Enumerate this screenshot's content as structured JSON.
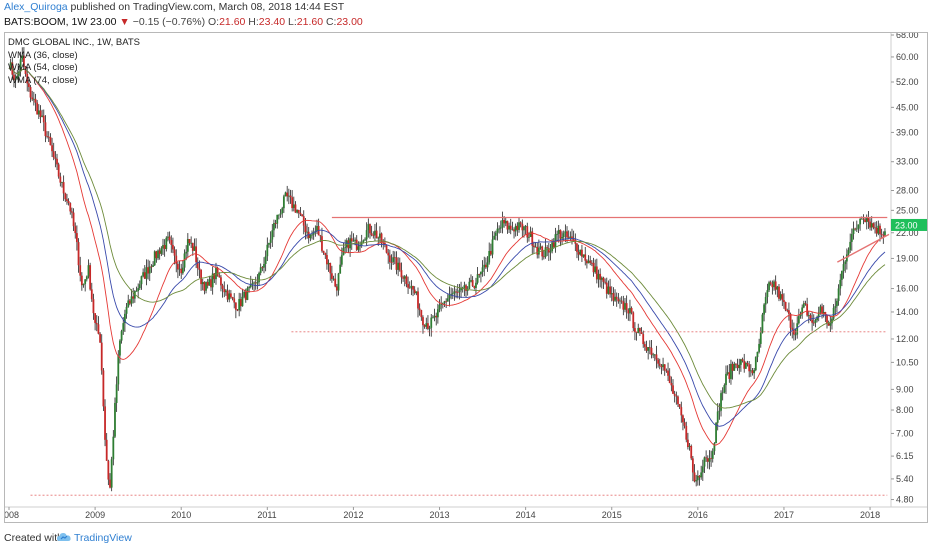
{
  "header": {
    "author": "Alex_Quiroga",
    "published": "published on TradingView.com, March 08, 2018 14:44 EST",
    "symbol": "BATS:BOOM, 1W",
    "last": "23.00",
    "change": "−0.15 (−0.76%)",
    "o_label": "O:",
    "o": "21.60",
    "h_label": "H:",
    "h": "23.40",
    "l_label": "L:",
    "l": "21.60",
    "c_label": "C:",
    "c": "23.00"
  },
  "legend": {
    "title": "DMC GLOBAL INC., 1W, BATS",
    "ma1": "WMA (36, close)",
    "ma2": "WMA (54, close)",
    "ma3": "WMA (74, close)"
  },
  "footer": {
    "created": "Created with",
    "brand": "TradingView"
  },
  "colors": {
    "up": "#2e7d32",
    "down": "#c62828",
    "wick": "#222222",
    "ma_red": "#e53935",
    "ma_blue": "#3949ab",
    "ma_green": "#6d8b3a",
    "hline": "#e57373",
    "price_tag": "#1fbf5b"
  },
  "chart_data": {
    "type": "candlestick",
    "title": "DMC GLOBAL INC., 1W, BATS",
    "y_scale": "log",
    "ylim": [
      4.6,
      68.0
    ],
    "y_ticks": [
      4.8,
      5.4,
      6.15,
      7.0,
      8.0,
      9.0,
      10.5,
      12.0,
      14.0,
      16.0,
      19.0,
      22.0,
      25.0,
      28.0,
      33.0,
      39.0,
      45.0,
      52.0,
      60.0,
      68.0
    ],
    "x_labels": [
      "2008",
      "2009",
      "2010",
      "2011",
      "2012",
      "2013",
      "2014",
      "2015",
      "2016",
      "2017",
      "2018"
    ],
    "xlim": [
      2008.0,
      2018.22
    ],
    "last_price": "23.00",
    "price_path": [
      [
        2008.0,
        58
      ],
      [
        2008.08,
        52
      ],
      [
        2008.15,
        60
      ],
      [
        2008.22,
        50
      ],
      [
        2008.3,
        46
      ],
      [
        2008.38,
        42
      ],
      [
        2008.46,
        37
      ],
      [
        2008.55,
        32
      ],
      [
        2008.63,
        28
      ],
      [
        2008.7,
        26
      ],
      [
        2008.78,
        21
      ],
      [
        2008.85,
        16
      ],
      [
        2008.92,
        18
      ],
      [
        2009.0,
        13
      ],
      [
        2009.06,
        12
      ],
      [
        2009.12,
        6.5
      ],
      [
        2009.17,
        5.0
      ],
      [
        2009.22,
        7.5
      ],
      [
        2009.28,
        11.5
      ],
      [
        2009.35,
        14
      ],
      [
        2009.45,
        15.5
      ],
      [
        2009.55,
        17
      ],
      [
        2009.65,
        18.5
      ],
      [
        2009.75,
        20
      ],
      [
        2009.85,
        21
      ],
      [
        2009.92,
        19
      ],
      [
        2010.0,
        18
      ],
      [
        2010.08,
        21
      ],
      [
        2010.15,
        20
      ],
      [
        2010.22,
        17
      ],
      [
        2010.3,
        16
      ],
      [
        2010.4,
        17.5
      ],
      [
        2010.5,
        16
      ],
      [
        2010.58,
        15
      ],
      [
        2010.66,
        14.5
      ],
      [
        2010.75,
        15.5
      ],
      [
        2010.83,
        16
      ],
      [
        2010.92,
        17.5
      ],
      [
        2011.0,
        20
      ],
      [
        2011.08,
        23
      ],
      [
        2011.15,
        25
      ],
      [
        2011.22,
        27
      ],
      [
        2011.28,
        26
      ],
      [
        2011.35,
        25
      ],
      [
        2011.42,
        23
      ],
      [
        2011.5,
        21.5
      ],
      [
        2011.58,
        22.5
      ],
      [
        2011.65,
        20
      ],
      [
        2011.72,
        18
      ],
      [
        2011.8,
        16
      ],
      [
        2011.88,
        19.5
      ],
      [
        2011.95,
        21
      ],
      [
        2012.03,
        20.5
      ],
      [
        2012.1,
        21.5
      ],
      [
        2012.18,
        22.5
      ],
      [
        2012.25,
        22
      ],
      [
        2012.32,
        21
      ],
      [
        2012.4,
        19.5
      ],
      [
        2012.48,
        18.5
      ],
      [
        2012.56,
        17.5
      ],
      [
        2012.64,
        16.5
      ],
      [
        2012.72,
        15.5
      ],
      [
        2012.8,
        13.5
      ],
      [
        2012.88,
        13
      ],
      [
        2012.95,
        13.5
      ],
      [
        2013.03,
        14.5
      ],
      [
        2013.12,
        15.5
      ],
      [
        2013.2,
        15.5
      ],
      [
        2013.3,
        15.8
      ],
      [
        2013.4,
        16.5
      ],
      [
        2013.5,
        17.5
      ],
      [
        2013.58,
        19.5
      ],
      [
        2013.66,
        22
      ],
      [
        2013.74,
        23.2
      ],
      [
        2013.82,
        22.5
      ],
      [
        2013.9,
        22.8
      ],
      [
        2013.98,
        22.5
      ],
      [
        2014.06,
        21.5
      ],
      [
        2014.14,
        20
      ],
      [
        2014.22,
        19.5
      ],
      [
        2014.3,
        20.5
      ],
      [
        2014.38,
        22
      ],
      [
        2014.46,
        21.5
      ],
      [
        2014.54,
        21
      ],
      [
        2014.62,
        20
      ],
      [
        2014.7,
        19
      ],
      [
        2014.78,
        18
      ],
      [
        2014.86,
        17
      ],
      [
        2014.94,
        16
      ],
      [
        2015.02,
        15
      ],
      [
        2015.1,
        14.5
      ],
      [
        2015.18,
        14.5
      ],
      [
        2015.26,
        13
      ],
      [
        2015.34,
        12
      ],
      [
        2015.42,
        11.5
      ],
      [
        2015.5,
        11
      ],
      [
        2015.58,
        10.5
      ],
      [
        2015.66,
        9.5
      ],
      [
        2015.74,
        8.5
      ],
      [
        2015.82,
        7.5
      ],
      [
        2015.9,
        6.5
      ],
      [
        2015.96,
        5.3
      ],
      [
        2016.02,
        5.6
      ],
      [
        2016.08,
        6.2
      ],
      [
        2016.14,
        6.0
      ],
      [
        2016.2,
        7.0
      ],
      [
        2016.26,
        8.5
      ],
      [
        2016.32,
        9.5
      ],
      [
        2016.4,
        10.2
      ],
      [
        2016.48,
        10.6
      ],
      [
        2016.56,
        10.2
      ],
      [
        2016.64,
        10.0
      ],
      [
        2016.7,
        11.0
      ],
      [
        2016.76,
        14.0
      ],
      [
        2016.82,
        16.0
      ],
      [
        2016.88,
        16.5
      ],
      [
        2016.94,
        15.5
      ],
      [
        2017.0,
        14.5
      ],
      [
        2017.06,
        13.5
      ],
      [
        2017.12,
        12.5
      ],
      [
        2017.18,
        13.5
      ],
      [
        2017.24,
        14.5
      ],
      [
        2017.3,
        13.5
      ],
      [
        2017.36,
        13.0
      ],
      [
        2017.42,
        14.5
      ],
      [
        2017.48,
        13.5
      ],
      [
        2017.54,
        13.0
      ],
      [
        2017.6,
        14.5
      ],
      [
        2017.66,
        17.0
      ],
      [
        2017.72,
        19.5
      ],
      [
        2017.78,
        21.5
      ],
      [
        2017.84,
        22.5
      ],
      [
        2017.9,
        24.5
      ],
      [
        2017.96,
        24.0
      ],
      [
        2018.02,
        23.0
      ],
      [
        2018.08,
        22.5
      ],
      [
        2018.14,
        22.0
      ],
      [
        2018.19,
        23.0
      ]
    ],
    "hlines": [
      {
        "y": 24.0,
        "from": 2011.75,
        "to": 2018.2,
        "style": "solid"
      },
      {
        "y": 12.5,
        "from": 2011.28,
        "to": 2018.2,
        "style": "dotted"
      },
      {
        "y": 4.92,
        "from": 2008.25,
        "to": 2018.2,
        "style": "dotted"
      }
    ],
    "trendlines": [
      {
        "from": [
          2017.62,
          18.6
        ],
        "to": [
          2018.22,
          21.8
        ]
      }
    ],
    "series": [
      {
        "name": "WMA (36, close)",
        "color": "#e53935"
      },
      {
        "name": "WMA (54, close)",
        "color": "#3949ab"
      },
      {
        "name": "WMA (74, close)",
        "color": "#6d8b3a"
      }
    ],
    "ma_offsets": [
      0,
      0.04,
      0.08
    ]
  }
}
